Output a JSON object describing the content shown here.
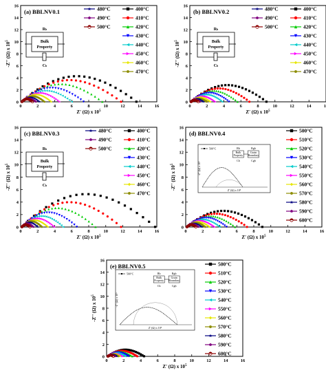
{
  "colors": {
    "black": "#000000",
    "red": "#ff0000",
    "green": "#00cc00",
    "blue": "#0000ff",
    "cyan": "#00cccc",
    "magenta": "#ff00ff",
    "yellow": "#e6e600",
    "olive": "#8c8c00",
    "navy": "#00007f",
    "purple": "#7f007f",
    "maroon": "#8b0000"
  },
  "axes": {
    "x_label": "Z' (Ω) x 10",
    "x_exp": "5",
    "y_label": "-Z'' (Ω) x 10",
    "y_exp": "5",
    "x_ticks": [
      "0",
      "2",
      "4",
      "6",
      "8",
      "10",
      "12",
      "14",
      "16"
    ],
    "y_ticks": [
      "0",
      "2",
      "4",
      "6",
      "8",
      "10",
      "12",
      "14",
      "16"
    ]
  },
  "inset_circuit": {
    "r_label": "R",
    "r_sub": "b",
    "box_line1": "Bulk",
    "box_line2": "Property",
    "c_label": "C",
    "c_sub": "b"
  },
  "inset_two_element": {
    "r1": "R",
    "r1_sub": "b",
    "r2": "R",
    "r2_sub": "gb",
    "box1_line1": "Bulk",
    "box1_line2": "Property",
    "box2_line1": "Grain",
    "box2_line2": "Boundary",
    "c1": "C",
    "c1_sub": "b",
    "c2": "C",
    "c2_sub": "gb",
    "xlab": "Z' (Ω) x 10⁵",
    "ylab": "-Z'' (Ω) x 10⁵"
  },
  "chart_data": [
    {
      "type": "scatter",
      "title": "(a) BBLNV0.1",
      "xlim": [
        0,
        16
      ],
      "ylim": [
        0,
        16
      ],
      "series": [
        {
          "name": "400°C",
          "color": "#000000",
          "marker": "square",
          "x_end": 13.6,
          "peak": 4.6
        },
        {
          "name": "410°C",
          "color": "#ff0000",
          "marker": "circle",
          "x_end": 11.8,
          "peak": 3.9
        },
        {
          "name": "420°C",
          "color": "#00cc00",
          "marker": "triangle",
          "x_end": 9.6,
          "peak": 3.2
        },
        {
          "name": "430°C",
          "color": "#0000ff",
          "marker": "tri-down",
          "x_end": 7.4,
          "peak": 2.5
        },
        {
          "name": "440°C",
          "color": "#00cccc",
          "marker": "tri-left",
          "x_end": 6.0,
          "peak": 2.0
        },
        {
          "name": "450°C",
          "color": "#ff00ff",
          "marker": "tri-right",
          "x_end": 4.6,
          "peak": 1.6
        },
        {
          "name": "460°C",
          "color": "#e6e600",
          "marker": "diamond",
          "x_end": 3.6,
          "peak": 1.3
        },
        {
          "name": "470°C",
          "color": "#8c8c00",
          "marker": "hexagon",
          "x_end": 2.8,
          "peak": 1.0
        },
        {
          "name": "480°C",
          "color": "#00007f",
          "marker": "star",
          "x_end": 2.2,
          "peak": 0.8
        },
        {
          "name": "490°C",
          "color": "#7f007f",
          "marker": "pentagon",
          "x_end": 1.8,
          "peak": 0.6
        },
        {
          "name": "500°C",
          "color": "#8b0000",
          "marker": "half-circle",
          "x_end": 1.4,
          "peak": 0.5
        }
      ]
    },
    {
      "type": "scatter",
      "title": "(b) BBLNV0.2",
      "xlim": [
        0,
        16
      ],
      "ylim": [
        0,
        16
      ],
      "series": [
        {
          "name": "400°C",
          "color": "#000000",
          "marker": "square",
          "x_end": 9.0,
          "peak": 3.0
        },
        {
          "name": "410°C",
          "color": "#ff0000",
          "marker": "circle",
          "x_end": 7.0,
          "peak": 2.4
        },
        {
          "name": "420°C",
          "color": "#00cc00",
          "marker": "triangle",
          "x_end": 5.6,
          "peak": 2.0
        },
        {
          "name": "430°C",
          "color": "#0000ff",
          "marker": "tri-down",
          "x_end": 4.6,
          "peak": 1.6
        },
        {
          "name": "440°C",
          "color": "#00cccc",
          "marker": "tri-left",
          "x_end": 3.8,
          "peak": 1.3
        },
        {
          "name": "450°C",
          "color": "#ff00ff",
          "marker": "tri-right",
          "x_end": 3.0,
          "peak": 1.0
        },
        {
          "name": "460°C",
          "color": "#e6e600",
          "marker": "diamond",
          "x_end": 2.4,
          "peak": 0.8
        },
        {
          "name": "470°C",
          "color": "#8c8c00",
          "marker": "hexagon",
          "x_end": 2.0,
          "peak": 0.6
        },
        {
          "name": "480°C",
          "color": "#00007f",
          "marker": "star",
          "x_end": 1.6,
          "peak": 0.5
        },
        {
          "name": "490°C",
          "color": "#7f007f",
          "marker": "pentagon",
          "x_end": 1.2,
          "peak": 0.4
        },
        {
          "name": "500°C",
          "color": "#8b0000",
          "marker": "half-circle",
          "x_end": 1.0,
          "peak": 0.3
        }
      ]
    },
    {
      "type": "scatter",
      "title": "(c) BBLNV0.3",
      "xlim": [
        0,
        16
      ],
      "ylim": [
        0,
        16
      ],
      "series": [
        {
          "name": "400°C",
          "color": "#000000",
          "marker": "square",
          "x_end": 15.8,
          "peak": 5.7
        },
        {
          "name": "410°C",
          "color": "#ff0000",
          "marker": "circle",
          "x_end": 11.8,
          "peak": 4.3
        },
        {
          "name": "420°C",
          "color": "#00cc00",
          "marker": "triangle",
          "x_end": 8.8,
          "peak": 3.3
        },
        {
          "name": "430°C",
          "color": "#0000ff",
          "marker": "tri-down",
          "x_end": 6.6,
          "peak": 2.5
        },
        {
          "name": "440°C",
          "color": "#00cccc",
          "marker": "tri-left",
          "x_end": 5.0,
          "peak": 1.9
        },
        {
          "name": "450°C",
          "color": "#ff00ff",
          "marker": "tri-right",
          "x_end": 4.0,
          "peak": 1.5
        },
        {
          "name": "460°C",
          "color": "#e6e600",
          "marker": "diamond",
          "x_end": 3.2,
          "peak": 1.2
        },
        {
          "name": "470°C",
          "color": "#8c8c00",
          "marker": "hexagon",
          "x_end": 2.5,
          "peak": 1.0
        },
        {
          "name": "480°C",
          "color": "#00007f",
          "marker": "star",
          "x_end": 2.0,
          "peak": 0.8
        },
        {
          "name": "490°C",
          "color": "#7f007f",
          "marker": "pentagon",
          "x_end": 1.5,
          "peak": 0.6
        },
        {
          "name": "500°C",
          "color": "#8b0000",
          "marker": "half-circle",
          "x_end": 1.1,
          "peak": 0.4
        }
      ]
    },
    {
      "type": "scatter",
      "title": "(d) BBLNV0.4",
      "xlim": [
        0,
        16
      ],
      "ylim": [
        0,
        16
      ],
      "inset_legend": "500°C",
      "series": [
        {
          "name": "500°C",
          "color": "#000000",
          "marker": "square",
          "x_end": 9.0,
          "peak": 2.8
        },
        {
          "name": "510°C",
          "color": "#ff0000",
          "marker": "circle",
          "x_end": 7.2,
          "peak": 2.3
        },
        {
          "name": "520°C",
          "color": "#00cc00",
          "marker": "triangle",
          "x_end": 5.8,
          "peak": 1.9
        },
        {
          "name": "530°C",
          "color": "#0000ff",
          "marker": "tri-down",
          "x_end": 4.8,
          "peak": 1.6
        },
        {
          "name": "540°C",
          "color": "#00cccc",
          "marker": "tri-left",
          "x_end": 4.0,
          "peak": 1.3
        },
        {
          "name": "550°C",
          "color": "#ff00ff",
          "marker": "tri-right",
          "x_end": 3.4,
          "peak": 1.1
        },
        {
          "name": "560°C",
          "color": "#e6e600",
          "marker": "diamond",
          "x_end": 2.8,
          "peak": 0.9
        },
        {
          "name": "570°C",
          "color": "#8c8c00",
          "marker": "hexagon",
          "x_end": 2.3,
          "peak": 0.75
        },
        {
          "name": "580°C",
          "color": "#00007f",
          "marker": "star",
          "x_end": 1.9,
          "peak": 0.6
        },
        {
          "name": "590°C",
          "color": "#7f007f",
          "marker": "pentagon",
          "x_end": 1.5,
          "peak": 0.5
        },
        {
          "name": "600°C",
          "color": "#8b0000",
          "marker": "half-circle",
          "x_end": 1.2,
          "peak": 0.4
        }
      ]
    },
    {
      "type": "scatter",
      "title": "(e) BBLNV0.5",
      "xlim": [
        0,
        16
      ],
      "ylim": [
        0,
        16
      ],
      "inset_legend": "500°C",
      "series": [
        {
          "name": "500°C",
          "color": "#000000",
          "marker": "square",
          "x_end": 4.4,
          "peak": 1.2
        },
        {
          "name": "510°C",
          "color": "#ff0000",
          "marker": "circle",
          "x_end": 3.6,
          "peak": 1.0
        },
        {
          "name": "520°C",
          "color": "#00cc00",
          "marker": "triangle",
          "x_end": 3.0,
          "peak": 0.85
        },
        {
          "name": "530°C",
          "color": "#0000ff",
          "marker": "tri-down",
          "x_end": 2.6,
          "peak": 0.7
        },
        {
          "name": "540°C",
          "color": "#00cccc",
          "marker": "tri-left",
          "x_end": 2.2,
          "peak": 0.6
        },
        {
          "name": "550°C",
          "color": "#ff00ff",
          "marker": "tri-right",
          "x_end": 1.9,
          "peak": 0.5
        },
        {
          "name": "560°C",
          "color": "#e6e600",
          "marker": "diamond",
          "x_end": 1.6,
          "peak": 0.45
        },
        {
          "name": "570°C",
          "color": "#8c8c00",
          "marker": "hexagon",
          "x_end": 1.4,
          "peak": 0.38
        },
        {
          "name": "580°C",
          "color": "#00007f",
          "marker": "star",
          "x_end": 1.2,
          "peak": 0.32
        },
        {
          "name": "590°C",
          "color": "#7f007f",
          "marker": "pentagon",
          "x_end": 1.0,
          "peak": 0.26
        },
        {
          "name": "600°C",
          "color": "#8b0000",
          "marker": "half-circle",
          "x_end": 0.8,
          "peak": 0.2
        }
      ]
    }
  ]
}
